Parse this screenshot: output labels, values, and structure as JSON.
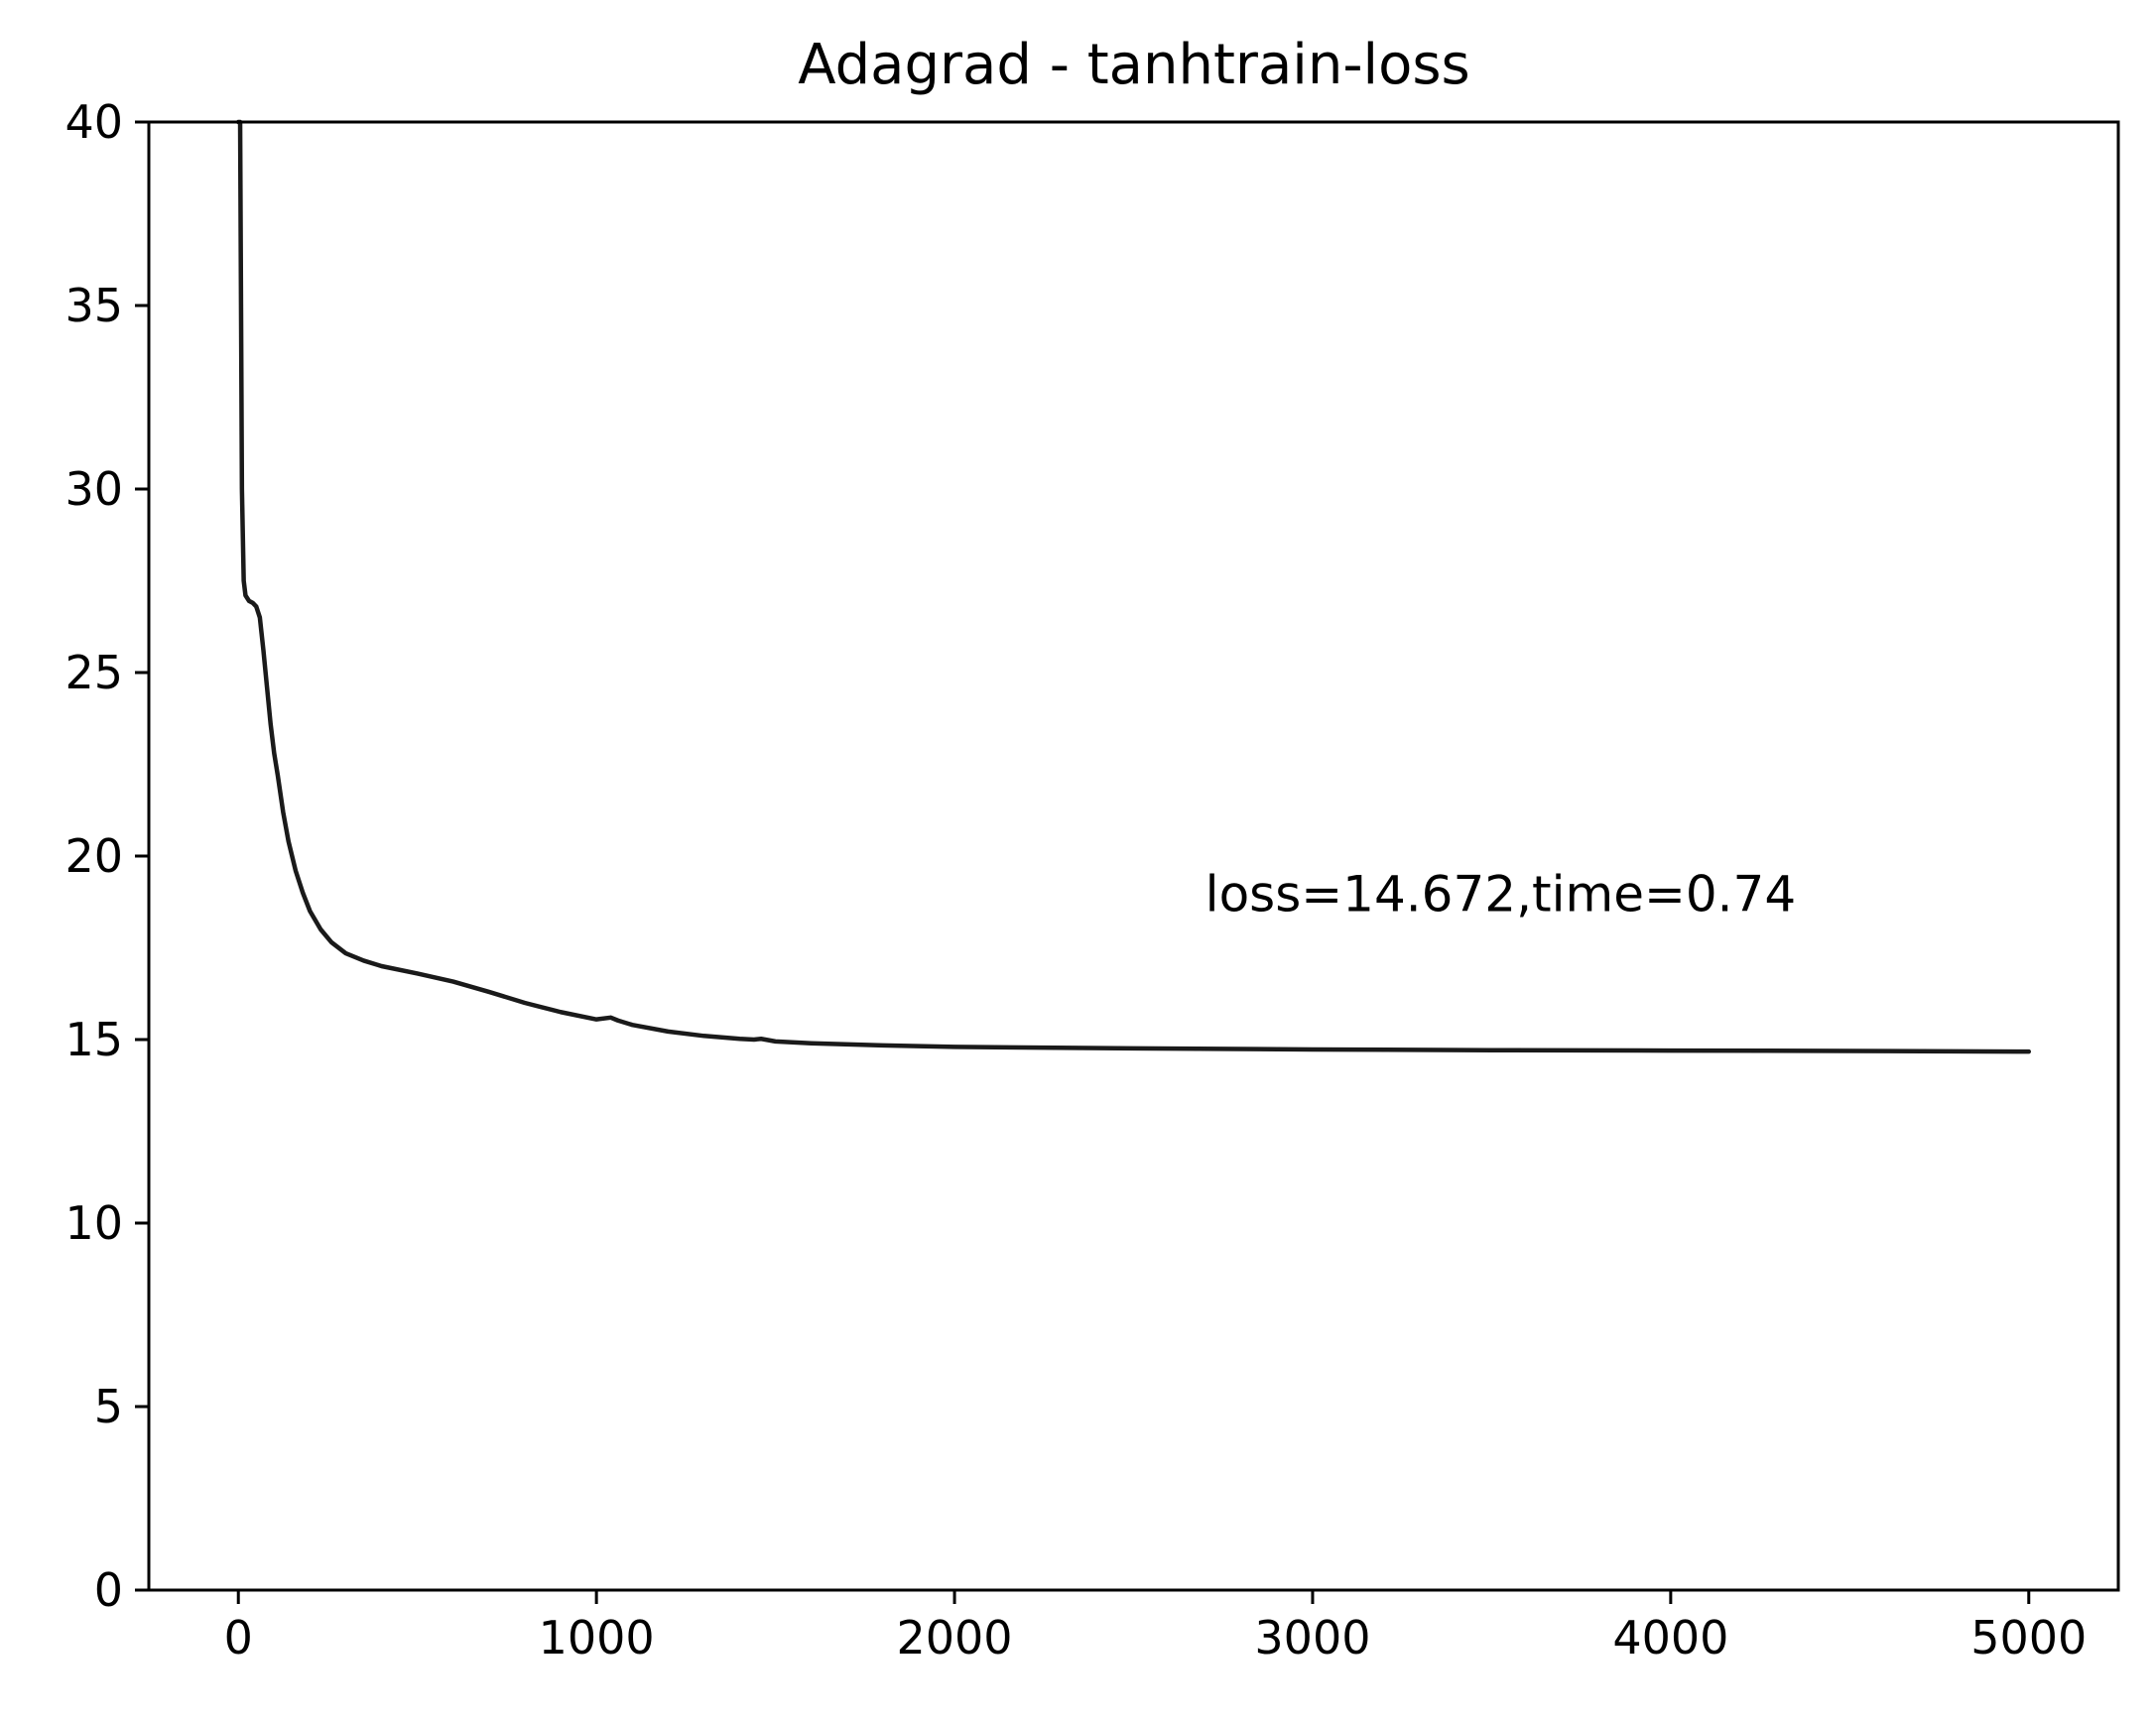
{
  "chart_data": {
    "type": "line",
    "title": "Adagrad - tanhtrain-loss",
    "xlabel": "",
    "ylabel": "",
    "xlim": [
      -250,
      5250
    ],
    "ylim": [
      0,
      40
    ],
    "x_ticks": [
      0,
      1000,
      2000,
      3000,
      4000,
      5000
    ],
    "y_ticks": [
      0,
      5,
      10,
      15,
      20,
      25,
      30,
      35,
      40
    ],
    "x_tick_labels": [
      "0",
      "1000",
      "2000",
      "3000",
      "4000",
      "5000"
    ],
    "y_tick_labels": [
      "0",
      "5",
      "10",
      "15",
      "20",
      "25",
      "30",
      "35",
      "40"
    ],
    "grid": false,
    "legend": "none",
    "line_color": "#1a1a1a",
    "annotation": {
      "text": "loss=14.672,time=0.74",
      "x": 2700,
      "y": 18.5
    },
    "series": [
      {
        "x": [
          0,
          5,
          10,
          15,
          20,
          30,
          40,
          50,
          60,
          70,
          80,
          90,
          100,
          110,
          125,
          140,
          160,
          180,
          200,
          230,
          260,
          300,
          350,
          400,
          500,
          600,
          700,
          800,
          900,
          1000,
          1040,
          1060,
          1100,
          1200,
          1300,
          1400,
          1440,
          1460,
          1500,
          1600,
          1800,
          2000,
          2500,
          3000,
          3500,
          4000,
          4500,
          5000
        ],
        "y": [
          40.0,
          40.0,
          30.0,
          27.5,
          27.1,
          26.95,
          26.9,
          26.8,
          26.5,
          25.6,
          24.6,
          23.6,
          22.8,
          22.2,
          21.2,
          20.4,
          19.6,
          19.0,
          18.5,
          18.0,
          17.65,
          17.35,
          17.15,
          17.0,
          16.8,
          16.58,
          16.3,
          16.0,
          15.75,
          15.55,
          15.6,
          15.52,
          15.4,
          15.22,
          15.1,
          15.02,
          15.0,
          15.02,
          14.95,
          14.9,
          14.84,
          14.8,
          14.76,
          14.73,
          14.71,
          14.7,
          14.69,
          14.672
        ]
      }
    ]
  }
}
